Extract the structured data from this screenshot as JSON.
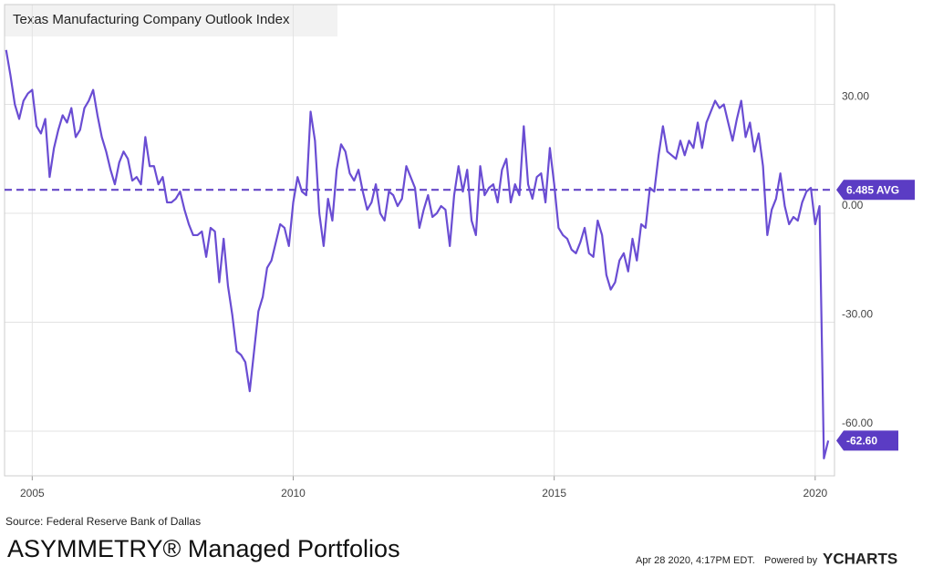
{
  "chart_data": {
    "type": "line",
    "title": "Texas Manufacturing Company Outlook Index",
    "color": "#6a4dd3",
    "x": [
      2004.5,
      2004.583,
      2004.667,
      2004.75,
      2004.833,
      2004.917,
      2005.0,
      2005.083,
      2005.167,
      2005.25,
      2005.333,
      2005.417,
      2005.5,
      2005.583,
      2005.667,
      2005.75,
      2005.833,
      2005.917,
      2006.0,
      2006.083,
      2006.167,
      2006.25,
      2006.333,
      2006.417,
      2006.5,
      2006.583,
      2006.667,
      2006.75,
      2006.833,
      2006.917,
      2007.0,
      2007.083,
      2007.167,
      2007.25,
      2007.333,
      2007.417,
      2007.5,
      2007.583,
      2007.667,
      2007.75,
      2007.833,
      2007.917,
      2008.0,
      2008.083,
      2008.167,
      2008.25,
      2008.333,
      2008.417,
      2008.5,
      2008.583,
      2008.667,
      2008.75,
      2008.833,
      2008.917,
      2009.0,
      2009.083,
      2009.167,
      2009.25,
      2009.333,
      2009.417,
      2009.5,
      2009.583,
      2009.667,
      2009.75,
      2009.833,
      2009.917,
      2010.0,
      2010.083,
      2010.167,
      2010.25,
      2010.333,
      2010.417,
      2010.5,
      2010.583,
      2010.667,
      2010.75,
      2010.833,
      2010.917,
      2011.0,
      2011.083,
      2011.167,
      2011.25,
      2011.333,
      2011.417,
      2011.5,
      2011.583,
      2011.667,
      2011.75,
      2011.833,
      2011.917,
      2012.0,
      2012.083,
      2012.167,
      2012.25,
      2012.333,
      2012.417,
      2012.5,
      2012.583,
      2012.667,
      2012.75,
      2012.833,
      2012.917,
      2013.0,
      2013.083,
      2013.167,
      2013.25,
      2013.333,
      2013.417,
      2013.5,
      2013.583,
      2013.667,
      2013.75,
      2013.833,
      2013.917,
      2014.0,
      2014.083,
      2014.167,
      2014.25,
      2014.333,
      2014.417,
      2014.5,
      2014.583,
      2014.667,
      2014.75,
      2014.833,
      2014.917,
      2015.0,
      2015.083,
      2015.167,
      2015.25,
      2015.333,
      2015.417,
      2015.5,
      2015.583,
      2015.667,
      2015.75,
      2015.833,
      2015.917,
      2016.0,
      2016.083,
      2016.167,
      2016.25,
      2016.333,
      2016.417,
      2016.5,
      2016.583,
      2016.667,
      2016.75,
      2016.833,
      2016.917,
      2017.0,
      2017.083,
      2017.167,
      2017.25,
      2017.333,
      2017.417,
      2017.5,
      2017.583,
      2017.667,
      2017.75,
      2017.833,
      2017.917,
      2018.0,
      2018.083,
      2018.167,
      2018.25,
      2018.333,
      2018.417,
      2018.5,
      2018.583,
      2018.667,
      2018.75,
      2018.833,
      2018.917,
      2019.0,
      2019.083,
      2019.167,
      2019.25,
      2019.333,
      2019.417,
      2019.5,
      2019.583,
      2019.667,
      2019.75,
      2019.833,
      2019.917,
      2020.0,
      2020.083,
      2020.167,
      2020.25
    ],
    "values": [
      45,
      38,
      30,
      26,
      31,
      33,
      34,
      24,
      22,
      26,
      10,
      18,
      23,
      27,
      25,
      29,
      21,
      23,
      29,
      31,
      34,
      27,
      21,
      17,
      12,
      8,
      14,
      17,
      15,
      9,
      10,
      8,
      21,
      13,
      13,
      8,
      10,
      3,
      3,
      4,
      6,
      1,
      -3,
      -6,
      -6,
      -5,
      -12,
      -4,
      -5,
      -19,
      -7,
      -20,
      -28,
      -38,
      -39,
      -41,
      -49,
      -38,
      -27,
      -23,
      -15,
      -13,
      -8,
      -3,
      -4,
      -9,
      3,
      10,
      6,
      5,
      28,
      20,
      0,
      -9,
      4,
      -2,
      12,
      19,
      17,
      11,
      9,
      12,
      6,
      1,
      3,
      8,
      0,
      -2,
      6,
      5,
      2,
      4,
      13,
      10,
      7,
      -4,
      1,
      5,
      -1,
      0,
      2,
      1,
      -9,
      5,
      13,
      6,
      12,
      -2,
      -6,
      13,
      5,
      7,
      8,
      3,
      12,
      15,
      3,
      8,
      5,
      24,
      8,
      4,
      10,
      11,
      3,
      18,
      8,
      -4,
      -6,
      -7,
      -10,
      -11,
      -8,
      -4,
      -11,
      -12,
      -2,
      -6,
      -17,
      -21,
      -19,
      -13,
      -11,
      -16,
      -7,
      -13,
      -3,
      -4,
      7,
      6,
      16,
      24,
      17,
      16,
      15,
      20,
      16,
      20,
      18,
      25,
      18,
      25,
      28,
      31,
      29,
      30,
      25,
      20,
      26,
      31,
      21,
      25,
      17,
      22,
      13,
      -6,
      1,
      4,
      11,
      2,
      -3,
      -1,
      -2,
      3,
      6,
      7,
      -3,
      2,
      -67.5,
      -62.6
    ],
    "end_label": "-62.60",
    "xlim": [
      2004.47,
      2020.37
    ],
    "xticks": [
      2005,
      2010,
      2015,
      2020
    ],
    "ylim": [
      -72.3,
      57.5
    ],
    "yticks": [
      {
        "value": 30,
        "label": "30.00"
      },
      {
        "value": 0,
        "label": "0.00"
      },
      {
        "value": -30,
        "label": "-30.00"
      },
      {
        "value": -60,
        "label": "-60.00"
      }
    ],
    "grid": true,
    "reference_lines": [
      {
        "value": 6.485,
        "label": "6.485 AVG",
        "color": "#5b3cc4"
      }
    ],
    "source": "Source: Federal Reserve Bank of Dallas",
    "brand": "ASYMMETRY® Managed Portfolios",
    "timestamp": "Apr 28 2020, 4:17PM EDT.",
    "powered_by": "Powered by",
    "provider": "YCHARTS"
  }
}
